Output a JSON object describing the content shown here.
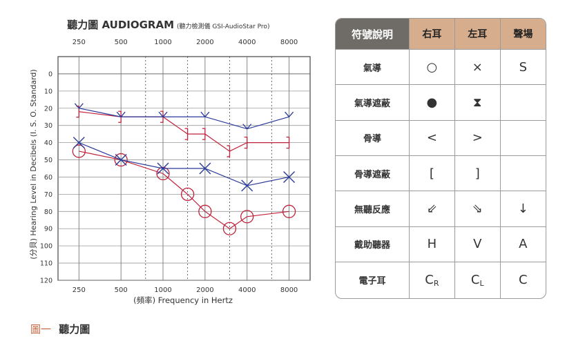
{
  "chart_data": {
    "type": "line",
    "title": "聽力圖 AUDIOGRAM",
    "subtitle": "(聽力檢測儀 GSI-AudioStar Pro)",
    "xlabel": "(頻率) Frequency in Hertz",
    "ylabel": "(分貝) Hearing Level in Decibels (I. S. O. Standard)",
    "x_scale": "log",
    "x_ticks": [
      "250",
      "500",
      "1000",
      "2000",
      "4000",
      "8000"
    ],
    "y_ticks": [
      "0",
      "10",
      "20",
      "30",
      "40",
      "50",
      "60",
      "70",
      "80",
      "90",
      "100",
      "110",
      "120"
    ],
    "ylim": [
      120,
      -10
    ],
    "series": [
      {
        "color": "#c0203a",
        "marker": "circle",
        "x": [
          250,
          500,
          1000,
          1500,
          2000,
          3000,
          4000,
          8000
        ],
        "y": [
          45,
          50,
          58,
          70,
          80,
          90,
          83,
          80
        ]
      },
      {
        "color": "#2a3a9a",
        "marker": "x",
        "x": [
          250,
          500,
          1000,
          2000,
          4000,
          8000
        ],
        "y": [
          40,
          50,
          55,
          55,
          65,
          60
        ]
      },
      {
        "color": "#c0203a",
        "marker": "bracket",
        "x": [
          250,
          500,
          1000,
          1500,
          2000,
          3000,
          4000,
          8000
        ],
        "y": [
          22,
          25,
          25,
          35,
          35,
          45,
          40,
          40
        ]
      },
      {
        "color": "#2a3a9a",
        "marker": "tick",
        "x": [
          250,
          500,
          1000,
          2000,
          4000,
          8000
        ],
        "y": [
          20,
          25,
          25,
          25,
          32,
          25
        ]
      }
    ]
  },
  "legend": {
    "headers": [
      "符號說明",
      "右耳",
      "左耳",
      "聲場"
    ],
    "rows": [
      {
        "label": "氣導",
        "right": "○",
        "left": "×",
        "field": "S"
      },
      {
        "label": "氣導遮蔽",
        "right": "●",
        "left": "⧗",
        "field": ""
      },
      {
        "label": "骨導",
        "right": "<",
        "left": ">",
        "field": ""
      },
      {
        "label": "骨導遮蔽",
        "right": "[",
        "left": "]",
        "field": ""
      },
      {
        "label": "無聽反應",
        "right": "⇙",
        "left": "⇘",
        "field": "↓"
      },
      {
        "label": "戴助聽器",
        "right": "H",
        "left": "V",
        "field": "A"
      },
      {
        "label": "電子耳",
        "right": "C",
        "right_sub": "R",
        "left": "C",
        "left_sub": "L",
        "field": "C"
      }
    ]
  },
  "caption": {
    "figure_no": "圖一",
    "title": "聽力圖"
  }
}
